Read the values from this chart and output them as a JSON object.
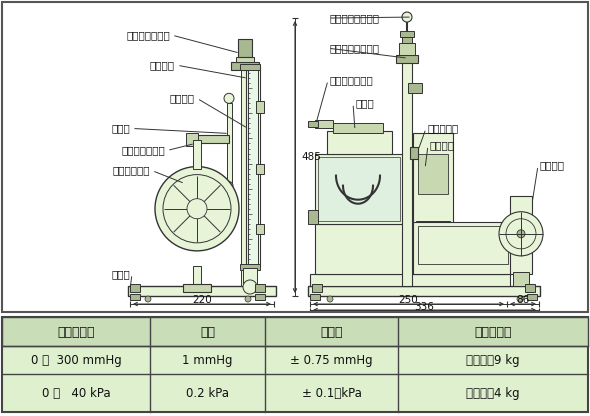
{
  "bg_color": "#d4ebc4",
  "bg_color_light": "#dff0cf",
  "table_header_bg": "#c8ddb8",
  "table_body_bg": "#dff0cf",
  "border_color": "#444444",
  "line_color": "#333333",
  "fill_light": "#e8f4d8",
  "fill_mid": "#c8d8b0",
  "fill_dark": "#a8b890",
  "text_color": "#111111",
  "table_headers": [
    "圧力の範囲",
    "目量",
    "精　度",
    "本器の質量"
  ],
  "table_row1": [
    "0 ～  300 mmHg",
    "1 mmHg",
    "± 0.75 mmHg",
    "本　体　9 kg"
  ],
  "table_row2": [
    "0 ～   40 kPa",
    "0.2 kPa",
    "± 0.1　kPa",
    "格納笱　4 kg"
  ],
  "label_ubu": "上部ガラス抑え",
  "label_scale": "スケール",
  "label_glass": "ガラス管",
  "label_rubber": "ゴム管",
  "label_blood": "血圧計取付金具",
  "label_level_adj": "水平調整ねじ",
  "label_base": "ベース",
  "label_plumb": "振り下げ式水準器",
  "label_scale_adj": "スケール調整ねじ",
  "label_air_valve": "大気吸入吐出弁",
  "label_mercury": "水銀槽",
  "label_rubber_clamp": "ゴム管抑え",
  "label_cylinder": "シリンダ",
  "label_handle": "ハンドル",
  "dim_220": "220",
  "dim_250": "250",
  "dim_86": "86",
  "dim_336": "336",
  "dim_485": "485",
  "figsize": [
    5.9,
    4.16
  ],
  "dpi": 100
}
